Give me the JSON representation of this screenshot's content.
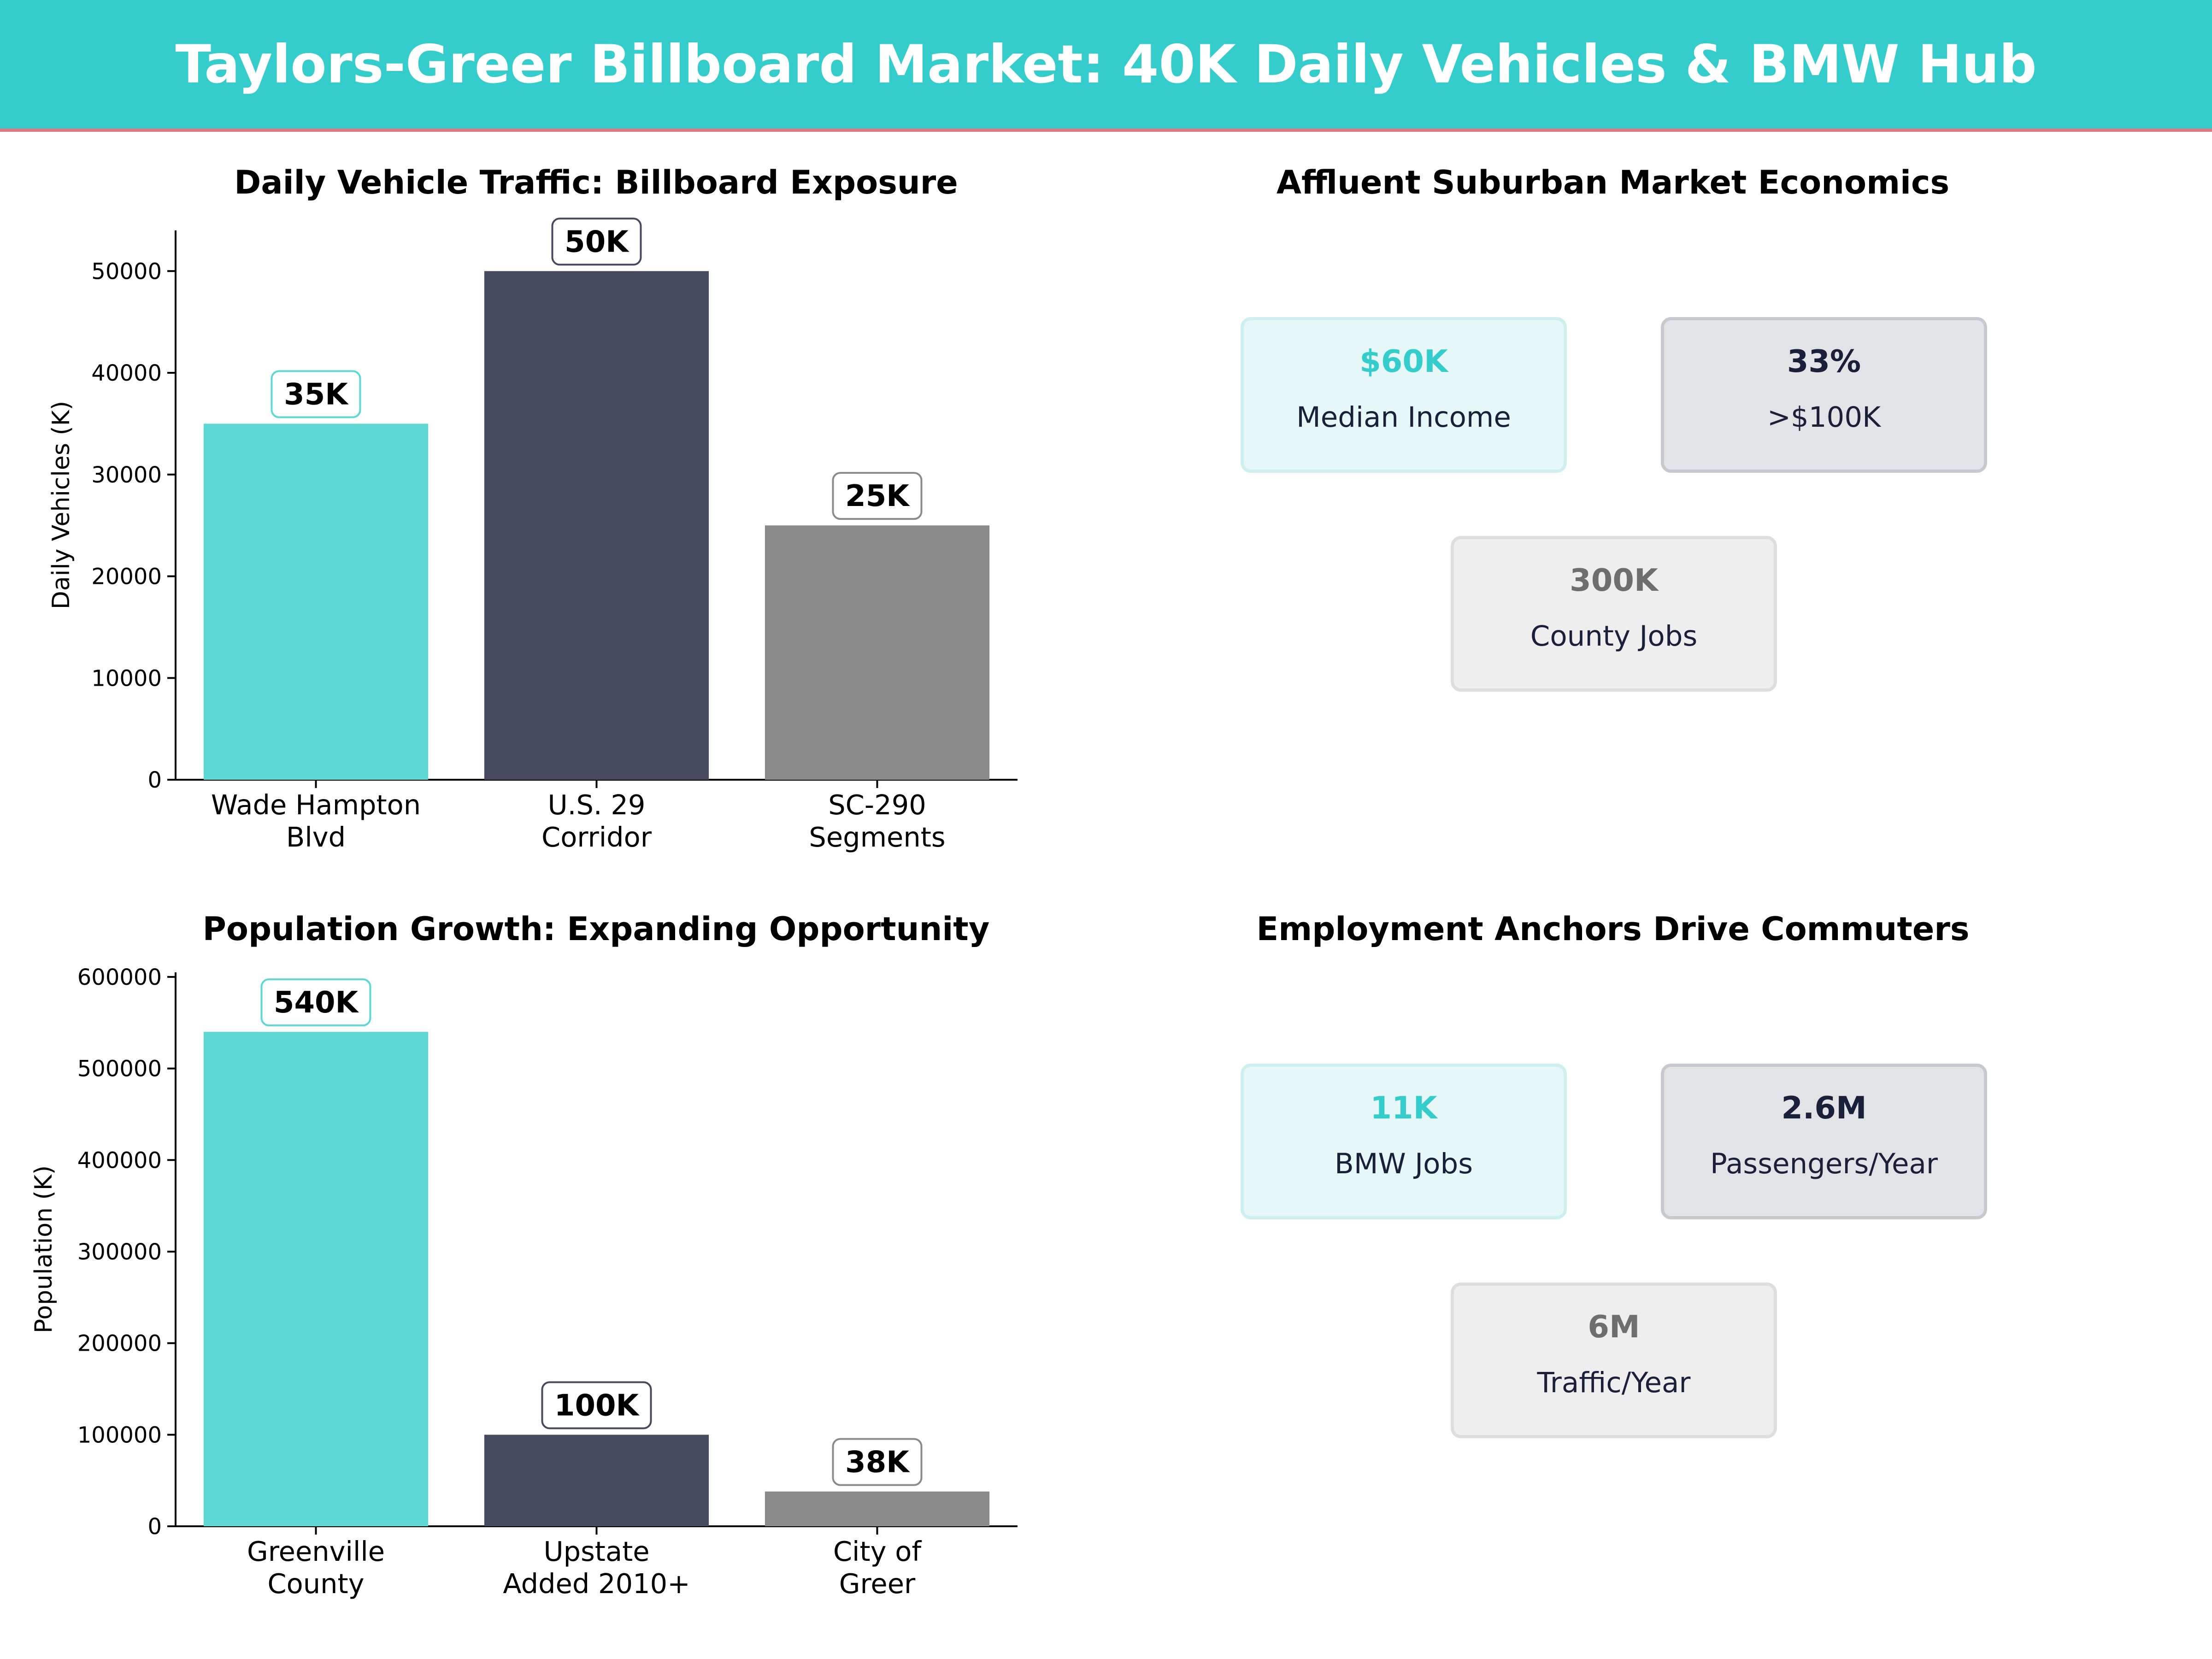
{
  "header": {
    "title": "Taylors-Greer Billboard Market: 40K Daily Vehicles & BMW Hub"
  },
  "colors": {
    "header_bg": "#35CCCC",
    "header_rule": "#E07A80",
    "teal": "#5ED8D5",
    "navy": "#464A5F",
    "gray": "#8A8A8A",
    "teal_text": "#35CCCC",
    "navy_text": "#1A1F3A",
    "gray_text": "#6E6E6E"
  },
  "chart_data": [
    {
      "type": "bar",
      "title": "Daily Vehicle Traffic: Billboard Exposure",
      "ylabel": "Daily Vehicles (K)",
      "xlabel": "",
      "categories": [
        "Wade Hampton\nBlvd",
        "U.S. 29\nCorridor",
        "SC-290\nSegments"
      ],
      "values": [
        35000,
        50000,
        25000
      ],
      "data_labels": [
        "35K",
        "50K",
        "25K"
      ],
      "colors": [
        "#5ED8D5",
        "#464A5F",
        "#8A8A8A"
      ],
      "ylim": [
        0,
        54000
      ],
      "yticks": [
        0,
        10000,
        20000,
        30000,
        40000,
        50000
      ],
      "grid": false
    },
    {
      "type": "bar",
      "title": "Population Growth: Expanding Opportunity",
      "ylabel": "Population (K)",
      "xlabel": "",
      "categories": [
        "Greenville\nCounty",
        "Upstate\nAdded 2010+",
        "City of\nGreer"
      ],
      "values": [
        540000,
        100000,
        38000
      ],
      "data_labels": [
        "540K",
        "100K",
        "38K"
      ],
      "colors": [
        "#5ED8D5",
        "#464A5F",
        "#8A8A8A"
      ],
      "ylim": [
        0,
        605000
      ],
      "yticks": [
        0,
        100000,
        200000,
        300000,
        400000,
        500000,
        600000
      ],
      "grid": false
    }
  ],
  "economics": {
    "title": "Affluent Suburban Market Economics",
    "cards": [
      {
        "value": "$60K",
        "label": "Median Income"
      },
      {
        "value": "33%",
        "label": ">$100K"
      },
      {
        "value": "300K",
        "label": "County Jobs"
      }
    ]
  },
  "employment": {
    "title": "Employment Anchors Drive Commuters",
    "cards": [
      {
        "value": "11K",
        "label": "BMW Jobs"
      },
      {
        "value": "2.6M",
        "label": "Passengers/Year"
      },
      {
        "value": "6M",
        "label": "Traffic/Year"
      }
    ]
  }
}
